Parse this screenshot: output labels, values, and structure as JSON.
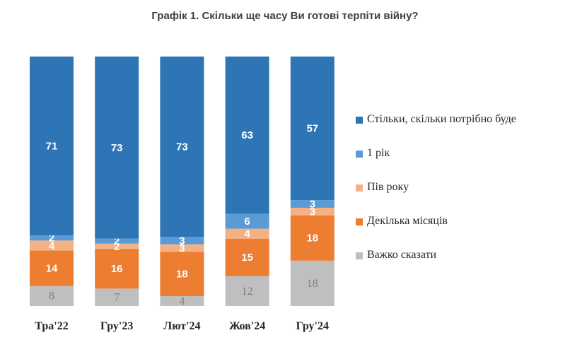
{
  "chart_data": {
    "type": "bar",
    "stacked": true,
    "title": "Графік 1. Скільки ще часу Ви готові терпіти війну?",
    "categories": [
      "Тра'22",
      "Гру'23",
      "Лют'24",
      "Жов'24",
      "Гру'24"
    ],
    "series": [
      {
        "name": "Важко сказати",
        "values": [
          8,
          7,
          4,
          12,
          18
        ],
        "color": "#bfbfbf",
        "label_color": "#7f7f7f"
      },
      {
        "name": "Декілька місяців",
        "values": [
          14,
          16,
          18,
          15,
          18
        ],
        "color": "#ed7d31",
        "label_color": "#ffffff"
      },
      {
        "name": "Пів року",
        "values": [
          4,
          2,
          3,
          4,
          3
        ],
        "color": "#f4b183",
        "label_color": "#ffffff"
      },
      {
        "name": "1 рік",
        "values": [
          2,
          2,
          3,
          6,
          3
        ],
        "color": "#5b9bd5",
        "label_color": "#ffffff"
      },
      {
        "name": "Стільки, скільки потрібно буде",
        "values": [
          71,
          73,
          73,
          63,
          57
        ],
        "color": "#2e75b6",
        "label_color": "#ffffff"
      }
    ],
    "ylim": [
      0,
      100
    ],
    "legend_position": "right",
    "legend_order": [
      "Стільки, скільки потрібно буде",
      "1 рік",
      "Пів року",
      "Декілька місяців",
      "Важко сказати"
    ]
  }
}
